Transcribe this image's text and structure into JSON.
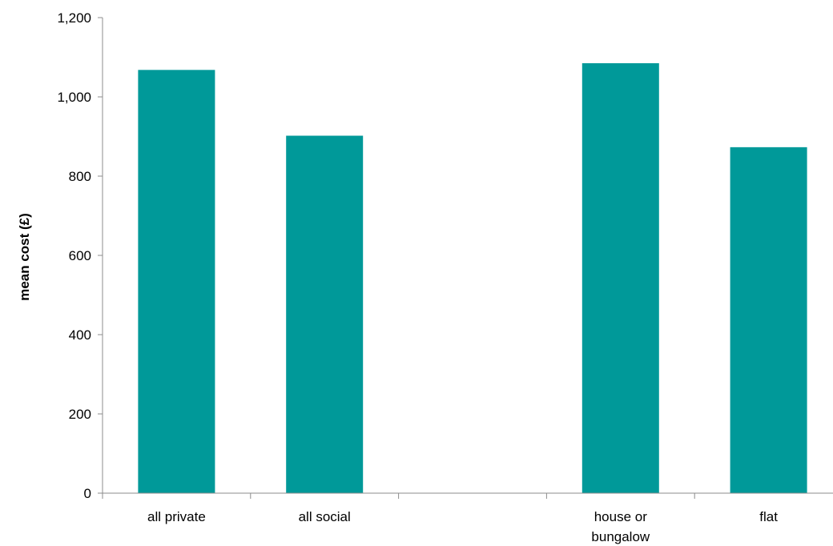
{
  "chart_data": {
    "type": "bar",
    "title": "",
    "xlabel": "",
    "ylabel": "mean cost (£)",
    "ylim": [
      0,
      1200
    ],
    "yticks": [
      0,
      200,
      400,
      600,
      800,
      1000,
      1200
    ],
    "ytick_labels": [
      "0",
      "200",
      "400",
      "600",
      "800",
      "1,000",
      "1,200"
    ],
    "categories": [
      [
        "all private"
      ],
      [
        "all social"
      ],
      [
        ""
      ],
      [
        "house or",
        "bungalow"
      ],
      [
        "flat"
      ]
    ],
    "values": [
      1068,
      902,
      null,
      1085,
      873
    ],
    "bar_color": "#009999",
    "grid": false,
    "legend": "none"
  }
}
